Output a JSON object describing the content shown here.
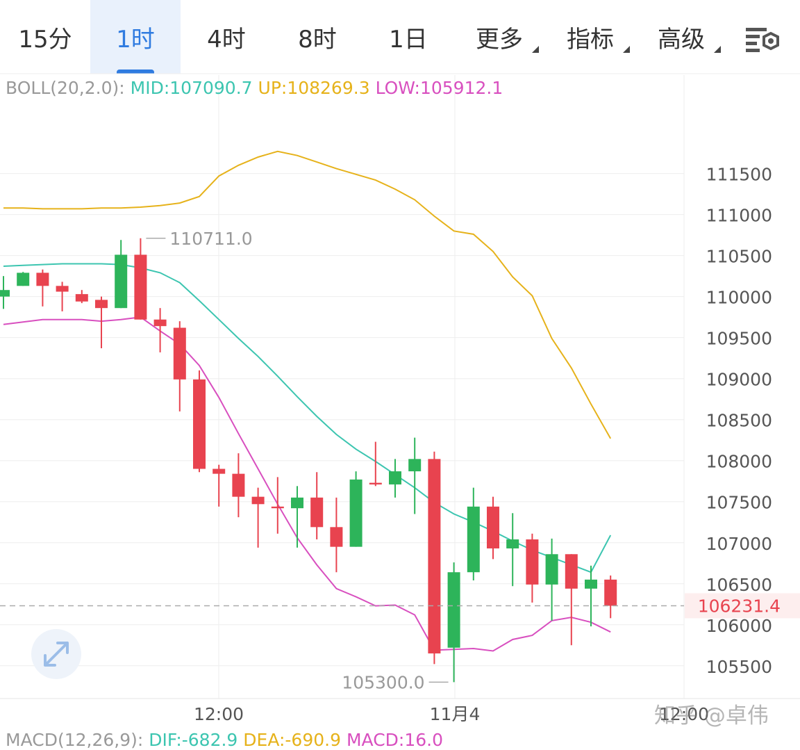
{
  "tabs": [
    {
      "label": "15分",
      "active": false
    },
    {
      "label": "1时",
      "active": true
    },
    {
      "label": "4时",
      "active": false
    },
    {
      "label": "8时",
      "active": false
    },
    {
      "label": "1日",
      "active": false
    },
    {
      "label": "更多",
      "active": false,
      "dropdown": true
    },
    {
      "label": "指标",
      "active": false,
      "dropdown": true
    },
    {
      "label": "高级",
      "active": false,
      "dropdown": true
    }
  ],
  "settings_icon": "chart-settings-icon",
  "boll": {
    "prefix": "BOLL(20,2.0):",
    "mid": "MID:107090.7",
    "up": "UP:108269.3",
    "low": "LOW:105912.1"
  },
  "macd": {
    "prefix": "MACD(12,26,9):",
    "dif": "DIF:-682.9",
    "dea": "DEA:-690.9",
    "macd": "MACD:16.0"
  },
  "watermark": "知乎 @卓伟",
  "expand_icon": "expand-arrows-icon",
  "colors": {
    "up": "#2db45a",
    "down": "#e8434f",
    "mid": "#3cc5b0",
    "upper": "#e6b21a",
    "lower": "#d84fbf",
    "accent": "#2f7be0",
    "price_tag": "#e8434f"
  },
  "chart_data": {
    "type": "candlestick",
    "interval": "1时",
    "y_ticks": [
      111500,
      111000,
      110500,
      110000,
      109500,
      109000,
      108500,
      108000,
      107500,
      107000,
      106500,
      106000,
      105500
    ],
    "ylim": [
      105100,
      112700
    ],
    "x_ticks": [
      "12:00",
      "11月4",
      "12:00"
    ],
    "current_price": "106231.4",
    "high_label": "110711.0",
    "low_label": "105300.0",
    "candles": [
      {
        "o": 110000,
        "h": 110250,
        "l": 109850,
        "c": 110080
      },
      {
        "o": 110130,
        "h": 110300,
        "l": 110130,
        "c": 110290
      },
      {
        "o": 110290,
        "h": 110330,
        "l": 109880,
        "c": 110130
      },
      {
        "o": 110130,
        "h": 110180,
        "l": 109820,
        "c": 110060
      },
      {
        "o": 110030,
        "h": 110080,
        "l": 109920,
        "c": 109940
      },
      {
        "o": 109960,
        "h": 110000,
        "l": 109370,
        "c": 109860
      },
      {
        "o": 109860,
        "h": 110690,
        "l": 109860,
        "c": 110510
      },
      {
        "o": 110510,
        "h": 110711,
        "l": 109720,
        "c": 109720
      },
      {
        "o": 109720,
        "h": 109860,
        "l": 109320,
        "c": 109640
      },
      {
        "o": 109620,
        "h": 109700,
        "l": 108600,
        "c": 108990
      },
      {
        "o": 108990,
        "h": 109100,
        "l": 107860,
        "c": 107900
      },
      {
        "o": 107900,
        "h": 107950,
        "l": 107440,
        "c": 107840
      },
      {
        "o": 107840,
        "h": 108090,
        "l": 107310,
        "c": 107560
      },
      {
        "o": 107560,
        "h": 107670,
        "l": 106940,
        "c": 107470
      },
      {
        "o": 107440,
        "h": 107800,
        "l": 107110,
        "c": 107420
      },
      {
        "o": 107420,
        "h": 107690,
        "l": 106940,
        "c": 107550
      },
      {
        "o": 107550,
        "h": 107860,
        "l": 107040,
        "c": 107190
      },
      {
        "o": 107190,
        "h": 107550,
        "l": 106640,
        "c": 106950
      },
      {
        "o": 106950,
        "h": 107870,
        "l": 106950,
        "c": 107770
      },
      {
        "o": 107730,
        "h": 108230,
        "l": 107690,
        "c": 107710
      },
      {
        "o": 107710,
        "h": 108020,
        "l": 107550,
        "c": 107870
      },
      {
        "o": 107870,
        "h": 108280,
        "l": 107350,
        "c": 108020
      },
      {
        "o": 108020,
        "h": 108110,
        "l": 105520,
        "c": 105650
      },
      {
        "o": 105720,
        "h": 106760,
        "l": 105300,
        "c": 106640
      },
      {
        "o": 106640,
        "h": 107670,
        "l": 106540,
        "c": 107440
      },
      {
        "o": 107440,
        "h": 107560,
        "l": 106800,
        "c": 106930
      },
      {
        "o": 106930,
        "h": 107360,
        "l": 106470,
        "c": 107040
      },
      {
        "o": 107040,
        "h": 107110,
        "l": 106270,
        "c": 106490
      },
      {
        "o": 106490,
        "h": 107050,
        "l": 106050,
        "c": 106860
      },
      {
        "o": 106860,
        "h": 106860,
        "l": 105750,
        "c": 106440
      },
      {
        "o": 106440,
        "h": 106720,
        "l": 105980,
        "c": 106550
      },
      {
        "o": 106550,
        "h": 106600,
        "l": 106080,
        "c": 106231.4
      }
    ],
    "series": [
      {
        "name": "MID",
        "values": [
          110370,
          110380,
          110390,
          110400,
          110400,
          110400,
          110390,
          110350,
          110290,
          110170,
          109950,
          109720,
          109490,
          109270,
          109030,
          108780,
          108540,
          108320,
          108140,
          107990,
          107830,
          107670,
          107490,
          107350,
          107250,
          107140,
          107020,
          106910,
          106820,
          106730,
          106640,
          107090.7
        ]
      },
      {
        "name": "UP",
        "values": [
          111080,
          111080,
          111070,
          111070,
          111070,
          111080,
          111080,
          111090,
          111110,
          111140,
          111220,
          111470,
          111600,
          111700,
          111770,
          111720,
          111640,
          111560,
          111490,
          111420,
          111310,
          111180,
          110980,
          110800,
          110760,
          110550,
          110240,
          110010,
          109490,
          109130,
          108690,
          108269.3
        ]
      },
      {
        "name": "LOW",
        "values": [
          109660,
          109690,
          109720,
          109720,
          109720,
          109700,
          109720,
          109750,
          109580,
          109420,
          109160,
          108770,
          108330,
          107900,
          107470,
          107060,
          106730,
          106440,
          106340,
          106230,
          106240,
          106120,
          105690,
          105700,
          105710,
          105680,
          105820,
          105870,
          106050,
          106090,
          106030,
          105912.1
        ]
      }
    ]
  }
}
